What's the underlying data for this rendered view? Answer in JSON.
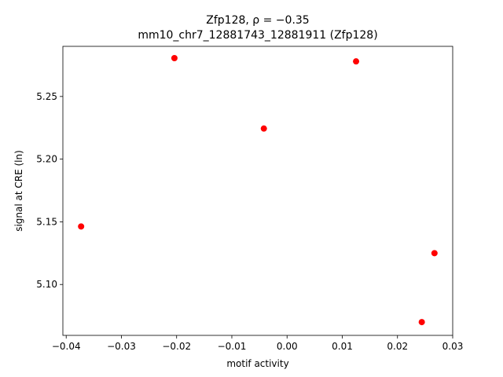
{
  "chart_data": {
    "type": "scatter",
    "title": "Zfp128, ρ = −0.35",
    "subtitle": "mm10_chr7_12881743_12881911 (Zfp128)",
    "x_label": "motif activity",
    "y_label": "signal at CRE (ln)",
    "color": "#ff0000",
    "x": [
      -0.0373,
      -0.0204,
      -0.0042,
      0.0125,
      0.0267,
      0.0244
    ],
    "values": [
      5.1463,
      5.2806,
      5.2244,
      5.278,
      5.125,
      5.07
    ],
    "xlim": [
      -0.0406,
      0.03
    ],
    "ylim": [
      5.0594,
      5.29
    ],
    "xticks": [
      {
        "value": -0.04,
        "label": "−0.04"
      },
      {
        "value": -0.03,
        "label": "−0.03"
      },
      {
        "value": -0.02,
        "label": "−0.02"
      },
      {
        "value": -0.01,
        "label": "−0.01"
      },
      {
        "value": 0,
        "label": "0.00"
      },
      0.01,
      0.02,
      0.03
    ],
    "yticks": [
      {
        "value": 5.1,
        "label": "5.10"
      },
      5.15,
      {
        "value": 5.2,
        "label": "5.20"
      },
      5.25
    ],
    "grid": false
  }
}
